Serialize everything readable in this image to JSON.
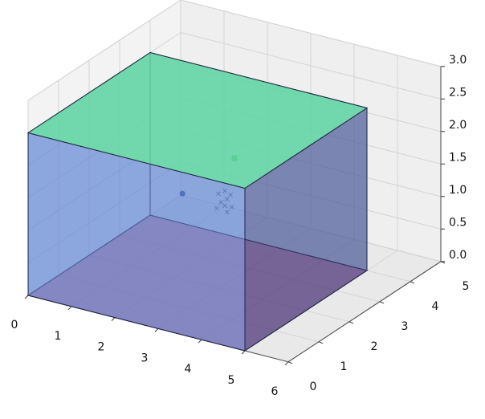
{
  "chart_data": {
    "type": "scatter3d",
    "xlim": [
      0,
      6
    ],
    "ylim": [
      0,
      5
    ],
    "zlim": [
      0,
      3
    ],
    "xticks": [
      0,
      1,
      2,
      3,
      4,
      5,
      6
    ],
    "yticks": [
      0,
      1,
      2,
      3,
      4,
      5
    ],
    "zticks": [
      {
        "value": 0,
        "label": "0.0"
      },
      0.5,
      {
        "value": 1,
        "label": "1.0"
      },
      1.5,
      {
        "value": 2,
        "label": "2.0"
      },
      2.5,
      {
        "value": 3,
        "label": "3.0"
      }
    ],
    "grid": true,
    "box": {
      "x": [
        0,
        5
      ],
      "y": [
        0,
        4
      ],
      "z": [
        0,
        2.5
      ]
    },
    "series": [
      {
        "color": "#3b4fa0",
        "marker": "o",
        "x": [
          1.8
        ],
        "y": [
          2.5
        ],
        "z": [
          1.1
        ]
      },
      {
        "color": "#4f8a6e",
        "marker": "s",
        "x": [
          3.0
        ],
        "y": [
          2.5
        ],
        "z": [
          1.85
        ]
      },
      {
        "color": "#5a6a8a",
        "marker": "x",
        "x": [
          2.63,
          2.78,
          2.91,
          2.83,
          2.69,
          2.59,
          2.78,
          2.94,
          2.83
        ],
        "y": [
          2.5,
          2.5,
          2.5,
          2.5,
          2.5,
          2.5,
          2.5,
          2.5,
          2.5
        ],
        "z": [
          1.24,
          1.31,
          1.27,
          1.19,
          1.12,
          1.01,
          1.08,
          1.09,
          0.99
        ]
      }
    ]
  }
}
